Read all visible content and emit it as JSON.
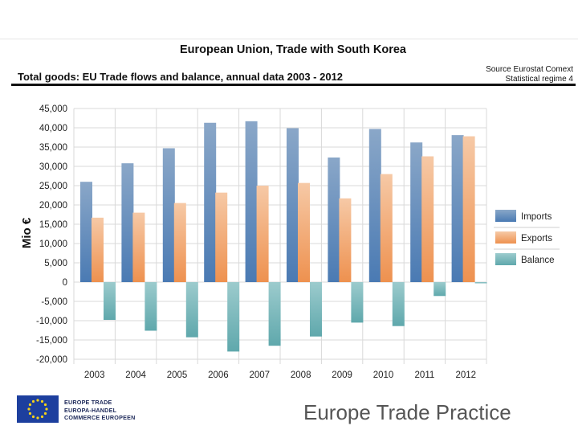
{
  "header": {
    "title": "European Union, Trade with South Korea",
    "subtitle": "Total goods: EU Trade flows and balance, annual data 2003 - 2012",
    "source_line1": "Source Eurostat Comext",
    "source_line2": "Statistical regime 4"
  },
  "chart_data": {
    "type": "bar",
    "categories": [
      "2003",
      "2004",
      "2005",
      "2006",
      "2007",
      "2008",
      "2009",
      "2010",
      "2011",
      "2012"
    ],
    "series": [
      {
        "name": "Imports",
        "values": [
          26000,
          30800,
          34700,
          41300,
          41700,
          39900,
          32300,
          39700,
          36200,
          38100
        ]
      },
      {
        "name": "Exports",
        "values": [
          16700,
          18000,
          20500,
          23200,
          25000,
          25700,
          21700,
          28000,
          32600,
          37800
        ]
      },
      {
        "name": "Balance",
        "values": [
          -9800,
          -12600,
          -14300,
          -18000,
          -16500,
          -14100,
          -10500,
          -11400,
          -3600,
          -300
        ]
      }
    ],
    "ylabel": "Mio €",
    "ylim": [
      -20000,
      45000
    ],
    "yticks": [
      45000,
      40000,
      35000,
      30000,
      25000,
      20000,
      15000,
      10000,
      5000,
      0,
      -5000,
      -10000,
      -15000,
      -20000
    ],
    "ytick_labels": [
      "45,000",
      "40,000",
      "35,000",
      "30,000",
      "25,000",
      "20,000",
      "15,000",
      "10,000",
      "5,000",
      "0",
      "-5,000",
      "-10,000",
      "-15,000",
      "-20,000"
    ],
    "grid": true,
    "legend": "right",
    "colors": {
      "Imports": "#5b86b8",
      "Exports": "#f0a06a",
      "Balance": "#6fb2b6"
    }
  },
  "footer": {
    "logo_line1": "EUROPE TRADE",
    "logo_line2": "EUROPA-HANDEL",
    "logo_line3": "COMMERCE EUROPEEN",
    "brand": "Europe Trade Practice"
  }
}
